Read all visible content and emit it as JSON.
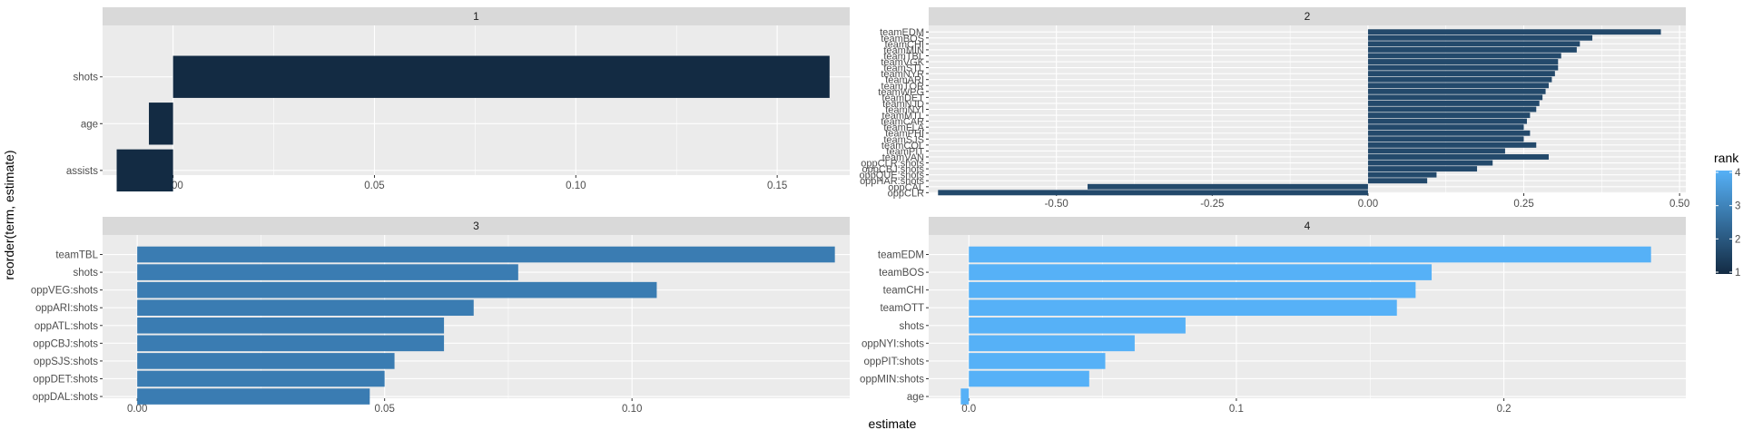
{
  "axis_titles": {
    "x": "estimate",
    "y": "reorder(term, estimate)"
  },
  "legend": {
    "title": "rank",
    "ticks": [
      "4",
      "3",
      "2",
      "1"
    ],
    "colors": {
      "low": "#132B43",
      "high": "#56B1F7"
    }
  },
  "chart_data": [
    {
      "type": "bar",
      "orientation": "horizontal",
      "facet": "1",
      "rank": 1,
      "color": "#132B43",
      "terms": [
        "shots",
        "age",
        "assists"
      ],
      "values": [
        0.163,
        -0.006,
        -0.014
      ],
      "xlim": [
        -0.0175,
        0.168
      ],
      "xticks": [
        0.0,
        0.05,
        0.1,
        0.15
      ],
      "xtick_labels": [
        "0.00",
        "0.05",
        "0.10",
        "0.15"
      ]
    },
    {
      "type": "bar",
      "orientation": "horizontal",
      "facet": "2",
      "rank": 2,
      "color": "#23496B",
      "terms": [
        "teamEDM",
        "teamBOS",
        "teamCHI",
        "teamMIN",
        "teamTBL",
        "teamVGK",
        "teamSTL",
        "teamNYR",
        "teamARI",
        "teamTOR",
        "teamWPG",
        "teamDET",
        "teamNJD",
        "teamNYI",
        "teamMTL",
        "teamCAR",
        "teamFLA",
        "teamPHI",
        "teamSJS",
        "teamCOL",
        "teamPIT",
        "teamVAN",
        "oppCLR:shots",
        "oppCBJ:shots",
        "oppQUE:shots",
        "oppHAR:shots",
        "oppCAL",
        "oppCLR"
      ],
      "values": [
        0.47,
        0.36,
        0.34,
        0.335,
        0.31,
        0.305,
        0.305,
        0.3,
        0.295,
        0.29,
        0.285,
        0.28,
        0.275,
        0.27,
        0.26,
        0.255,
        0.25,
        0.26,
        0.25,
        0.27,
        0.22,
        0.29,
        0.2,
        0.175,
        0.11,
        0.095,
        -0.45,
        -0.69
      ],
      "xlim": [
        -0.705,
        0.51
      ],
      "xticks": [
        -0.5,
        -0.25,
        0.0,
        0.25,
        0.5
      ],
      "xtick_labels": [
        "-0.50",
        "-0.25",
        "0.00",
        "0.25",
        "0.50"
      ]
    },
    {
      "type": "bar",
      "orientation": "horizontal",
      "facet": "3",
      "rank": 3,
      "color": "#3A7CB2",
      "terms": [
        "teamTBL",
        "shots",
        "oppVEG:shots",
        "oppARI:shots",
        "oppATL:shots",
        "oppCBJ:shots",
        "oppSJS:shots",
        "oppDET:shots",
        "oppDAL:shots"
      ],
      "values": [
        0.141,
        0.077,
        0.105,
        0.068,
        0.062,
        0.062,
        0.052,
        0.05,
        0.047
      ],
      "xlim": [
        -0.007,
        0.144
      ],
      "xticks": [
        0.0,
        0.05,
        0.1
      ],
      "xtick_labels": [
        "0.00",
        "0.05",
        "0.10"
      ]
    },
    {
      "type": "bar",
      "orientation": "horizontal",
      "facet": "4",
      "rank": 4,
      "color": "#56B1F7",
      "terms": [
        "teamEDM",
        "teamBOS",
        "teamCHI",
        "teamOTT",
        "shots",
        "oppNYI:shots",
        "oppPIT:shots",
        "oppMIN:shots",
        "age"
      ],
      "values": [
        0.255,
        0.173,
        0.167,
        0.16,
        0.081,
        0.062,
        0.051,
        0.045,
        -0.003
      ],
      "xlim": [
        -0.015,
        0.268
      ],
      "xticks": [
        0.0,
        0.1,
        0.2
      ],
      "xtick_labels": [
        "0.0",
        "0.1",
        "0.2"
      ]
    }
  ]
}
